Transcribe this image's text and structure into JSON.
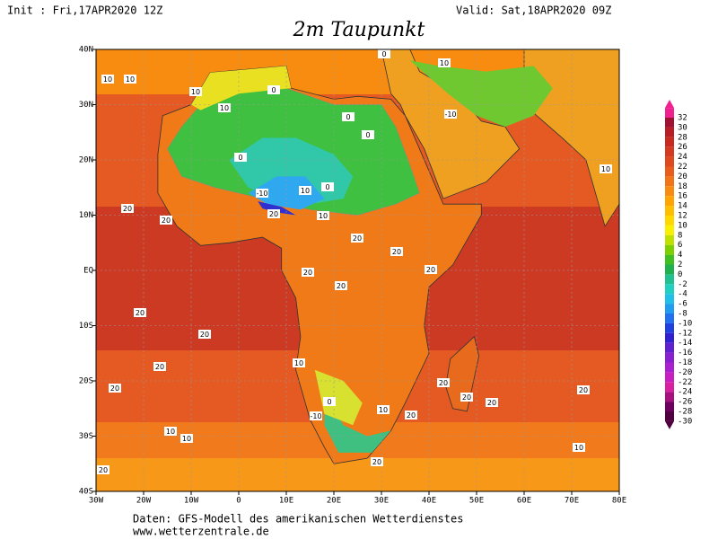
{
  "header": {
    "init": "Init : Fri,17APR2020 12Z",
    "valid": "Valid: Sat,18APR2020 09Z",
    "title": "2m Taupunkt"
  },
  "map": {
    "xticks": [
      {
        "value": -30,
        "label": "30W"
      },
      {
        "value": -20,
        "label": "20W"
      },
      {
        "value": -10,
        "label": "10W"
      },
      0,
      {
        "value": 10,
        "label": "10E"
      },
      {
        "value": 20,
        "label": "20E"
      },
      {
        "value": 30,
        "label": "30E"
      },
      {
        "value": 40,
        "label": "40E"
      },
      {
        "value": 50,
        "label": "50E"
      },
      {
        "value": 60,
        "label": "60E"
      },
      {
        "value": 70,
        "label": "70E"
      },
      {
        "value": 80,
        "label": "80E"
      }
    ],
    "yticks": [
      {
        "value": 40,
        "label": "40N"
      },
      {
        "value": 30,
        "label": "30N"
      },
      {
        "value": 20,
        "label": "20N"
      },
      {
        "value": 10,
        "label": "10N"
      },
      {
        "value": 0,
        "label": "EQ"
      },
      {
        "value": -10,
        "label": "10S"
      },
      {
        "value": -20,
        "label": "20S"
      },
      {
        "value": -30,
        "label": "30S"
      },
      {
        "value": -40,
        "label": "40S"
      }
    ],
    "xlim": [
      -30,
      80
    ],
    "ylim": [
      -40,
      40
    ],
    "grid": true,
    "contour_labels": [
      10,
      10,
      10,
      0,
      0,
      0,
      10,
      0,
      -10,
      0,
      10,
      10,
      -10,
      0,
      10,
      20,
      20,
      20,
      20,
      20,
      20,
      20,
      20,
      20,
      20,
      20,
      20,
      10,
      20,
      20,
      20,
      10,
      20,
      20,
      10,
      10,
      0,
      -10,
      10,
      20,
      20,
      10
    ]
  },
  "colorbar": {
    "levels": [
      32,
      30,
      28,
      26,
      24,
      22,
      20,
      18,
      16,
      14,
      12,
      10,
      8,
      6,
      4,
      2,
      0,
      -2,
      -4,
      -6,
      -8,
      -10,
      -12,
      -14,
      -16,
      -18,
      -20,
      -22,
      -24,
      -26,
      -28,
      -30
    ],
    "colors": [
      "#f0208f",
      "#a01030",
      "#b81c24",
      "#c82a20",
      "#d43a20",
      "#de4a1e",
      "#e85c1c",
      "#f07418",
      "#f88c10",
      "#ffa400",
      "#ffbe00",
      "#ffd800",
      "#f8f000",
      "#c0e000",
      "#80d000",
      "#40c020",
      "#20b050",
      "#20c090",
      "#20d0c0",
      "#20c0e8",
      "#209cf0",
      "#2070f0",
      "#2040e0",
      "#3020d0",
      "#6020d0",
      "#8820d0",
      "#a820d0",
      "#c820c0",
      "#d820a0",
      "#a81080",
      "#700060",
      "#500040"
    ]
  },
  "footer": {
    "line1": "Daten: GFS-Modell des amerikanischen Wetterdienstes",
    "line2": "www.wetterzentrale.de"
  }
}
